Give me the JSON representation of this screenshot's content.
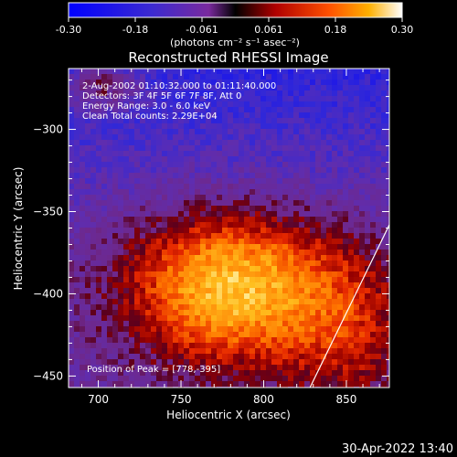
{
  "chart_data": {
    "type": "heatmap",
    "title": "Reconstructed RHESSI Image",
    "xlabel": "Heliocentric X (arcsec)",
    "ylabel": "Heliocentric Y (arcsec)",
    "xlim": [
      682,
      876
    ],
    "ylim": [
      -457,
      -263
    ],
    "x_ticks": [
      700,
      750,
      800,
      850
    ],
    "y_ticks": [
      -300,
      -350,
      -400,
      -450
    ],
    "colorbar": {
      "min": -0.3,
      "max": 0.3,
      "ticks": [
        "-0.30",
        "-0.18",
        "-0.061",
        "0.061",
        "0.18",
        "0.30"
      ],
      "unit_label": "(photons cm⁻² s⁻¹ asec⁻²)"
    },
    "annotations": [
      " 2-Aug-2002 01:10:32.000 to 01:11:40.000",
      "Detectors: 3F 4F 5F 6F 7F 8F, Att 0",
      "Energy Range: 3.0 - 6.0 keV",
      "Clean     Total counts: 2.29E+04"
    ],
    "peak_label": "Position of Peak = [778,-395]",
    "peak": [
      778,
      -395
    ],
    "limb_line": [
      [
        828,
        -457
      ],
      [
        876,
        -358
      ]
    ]
  },
  "timestamp": "30-Apr-2022 13:40"
}
